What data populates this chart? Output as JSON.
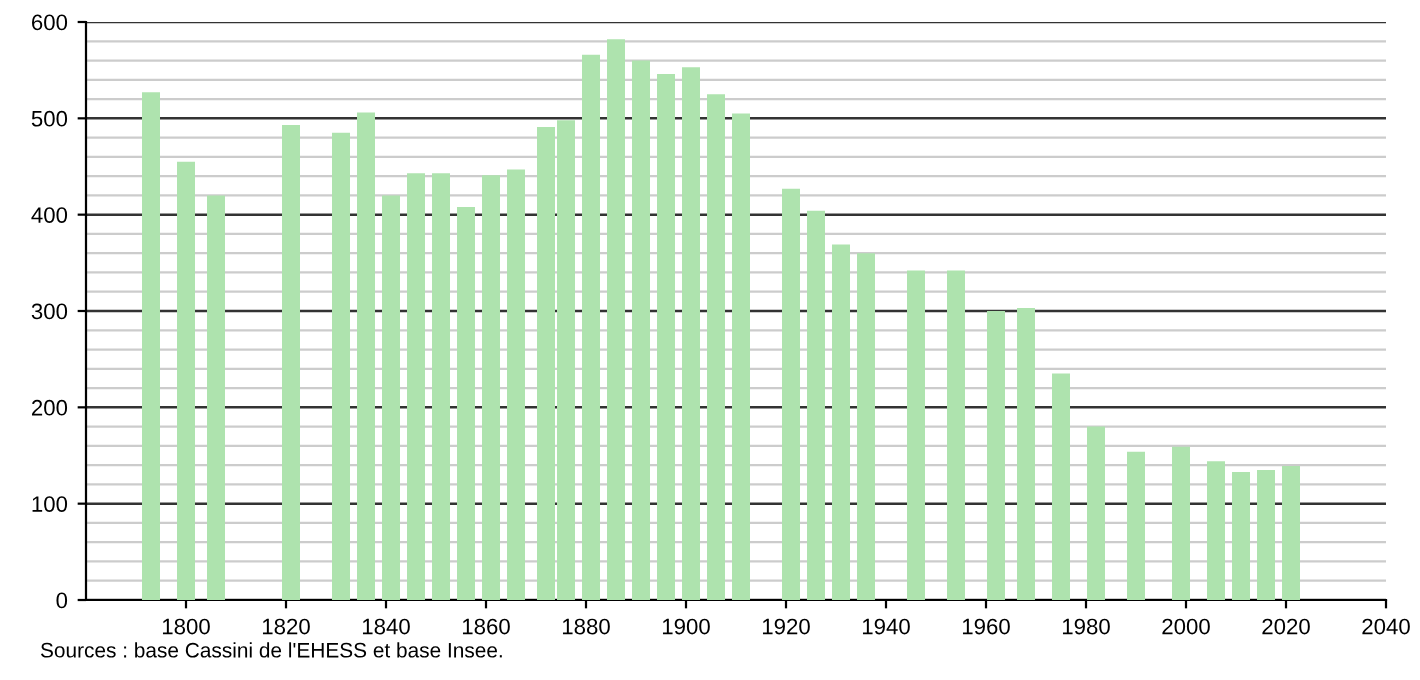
{
  "chart_data": {
    "type": "bar",
    "x": [
      1793,
      1800,
      1806,
      1821,
      1831,
      1836,
      1841,
      1846,
      1851,
      1856,
      1861,
      1866,
      1872,
      1876,
      1881,
      1886,
      1891,
      1896,
      1901,
      1906,
      1911,
      1921,
      1926,
      1931,
      1936,
      1946,
      1954,
      1962,
      1968,
      1975,
      1982,
      1990,
      1999,
      2006,
      2011,
      2016,
      2021
    ],
    "values": [
      527,
      455,
      420,
      493,
      485,
      506,
      420,
      443,
      443,
      408,
      441,
      447,
      491,
      498,
      566,
      582,
      560,
      546,
      553,
      525,
      505,
      427,
      404,
      369,
      360,
      342,
      342,
      300,
      303,
      235,
      180,
      154,
      159,
      144,
      133,
      135,
      139
    ],
    "color": "#aee3ae",
    "xlim": [
      1780,
      2040
    ],
    "xticks": [
      1800,
      1820,
      1840,
      1860,
      1880,
      1900,
      1920,
      1940,
      1960,
      1980,
      2000,
      2020,
      2040
    ],
    "ylim": [
      0,
      600
    ],
    "yticks": [
      0,
      100,
      200,
      300,
      400,
      500,
      600
    ],
    "grid": "y",
    "annotations": [
      "Sources : base Cassini de l'EHESS et base Insee."
    ]
  }
}
